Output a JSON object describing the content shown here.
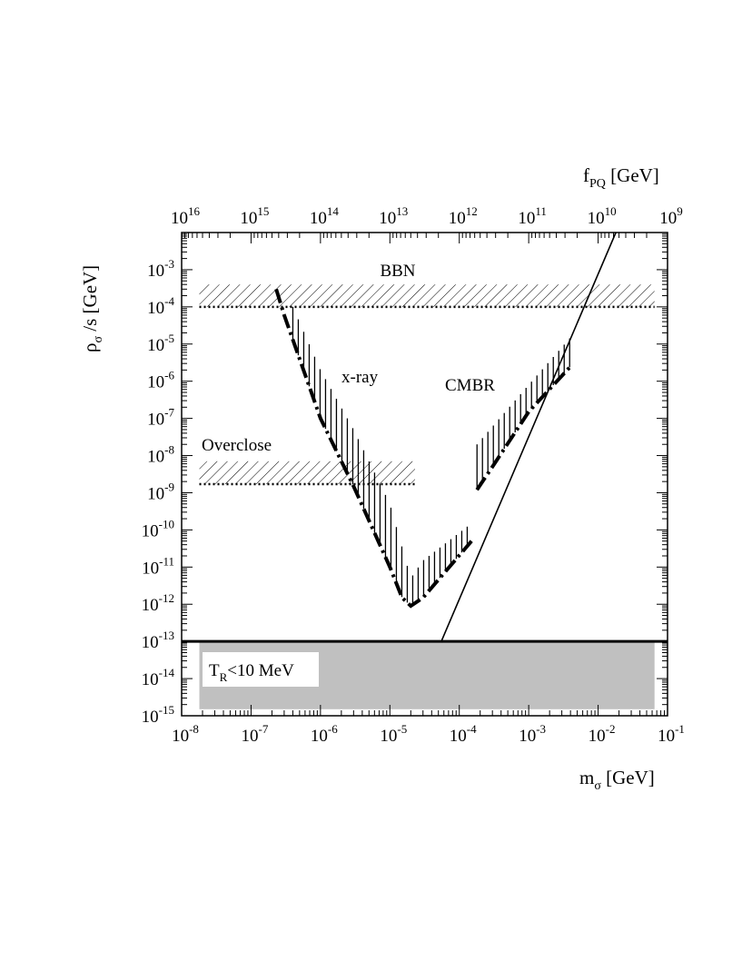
{
  "chart_data": {
    "type": "line",
    "xlabel": "mσ [GeV]",
    "xlabel_base": "m",
    "xlabel_sub": "σ",
    "xlabel_unit": "[GeV]",
    "ylabel": "ρσ /s [GeV]",
    "ylabel_base": "ρ",
    "ylabel_sub": "σ",
    "ylabel_unit": "/s [GeV]",
    "top_xlabel": "fPQ [GeV]",
    "top_xlabel_base": "f",
    "top_xlabel_sub": "PQ",
    "top_xlabel_unit": "[GeV]",
    "x_scale": "log",
    "y_scale": "log",
    "xlim": [
      1e-08,
      0.1
    ],
    "ylim": [
      1e-15,
      0.01
    ],
    "top_xlim": [
      1e+16,
      1000000000.0
    ],
    "x_ticks": [
      {
        "value": 1e-08,
        "base": "10",
        "exp": "-8"
      },
      {
        "value": 1e-07,
        "base": "10",
        "exp": "-7"
      },
      {
        "value": 1e-06,
        "base": "10",
        "exp": "-6"
      },
      {
        "value": 1e-05,
        "base": "10",
        "exp": "-5"
      },
      {
        "value": 0.0001,
        "base": "10",
        "exp": "-4"
      },
      {
        "value": 0.001,
        "base": "10",
        "exp": "-3"
      },
      {
        "value": 0.01,
        "base": "10",
        "exp": "-2"
      },
      {
        "value": 0.1,
        "base": "10",
        "exp": "-1"
      }
    ],
    "top_x_ticks": [
      {
        "value": 1e+16,
        "base": "10",
        "exp": "16"
      },
      {
        "value": 1000000000000000.0,
        "base": "10",
        "exp": "15"
      },
      {
        "value": 100000000000000.0,
        "base": "10",
        "exp": "14"
      },
      {
        "value": 10000000000000.0,
        "base": "10",
        "exp": "13"
      },
      {
        "value": 1000000000000.0,
        "base": "10",
        "exp": "12"
      },
      {
        "value": 100000000000.0,
        "base": "10",
        "exp": "11"
      },
      {
        "value": 10000000000.0,
        "base": "10",
        "exp": "10"
      },
      {
        "value": 1000000000.0,
        "base": "10",
        "exp": "9"
      }
    ],
    "y_ticks": [
      {
        "value": 0.001,
        "base": "10",
        "exp": "-3"
      },
      {
        "value": 0.0001,
        "base": "10",
        "exp": "-4"
      },
      {
        "value": 1e-05,
        "base": "10",
        "exp": "-5"
      },
      {
        "value": 1e-06,
        "base": "10",
        "exp": "-6"
      },
      {
        "value": 1e-07,
        "base": "10",
        "exp": "-7"
      },
      {
        "value": 1e-08,
        "base": "10",
        "exp": "-8"
      },
      {
        "value": 1e-09,
        "base": "10",
        "exp": "-9"
      },
      {
        "value": 1e-10,
        "base": "10",
        "exp": "-10"
      },
      {
        "value": 1e-11,
        "base": "10",
        "exp": "-11"
      },
      {
        "value": 1e-12,
        "base": "10",
        "exp": "-12"
      },
      {
        "value": 1e-13,
        "base": "10",
        "exp": "-13"
      },
      {
        "value": 1e-14,
        "base": "10",
        "exp": "-14"
      },
      {
        "value": 1e-15,
        "base": "10",
        "exp": "-15"
      }
    ],
    "regions": [
      {
        "label": "BBN",
        "kind": "hatched-band",
        "x_range": [
          1.8e-08,
          0.065
        ],
        "y_range": [
          0.0001,
          0.0004
        ],
        "boundary_y": 0.0001
      },
      {
        "label": "Overclose",
        "kind": "hatched-band",
        "x_range": [
          1.8e-08,
          2.3e-05
        ],
        "y_range": [
          1.7e-09,
          7e-09
        ],
        "boundary_y": 1.7e-09
      },
      {
        "label": "T_R<10 MeV",
        "label_base": "T",
        "label_sub": "R",
        "label_rest": "<10 MeV",
        "kind": "grey-box",
        "x_range": [
          1.8e-08,
          0.065
        ],
        "y_range": [
          1.5e-15,
          1e-13
        ],
        "boundary_y": 1e-13
      }
    ],
    "series": [
      {
        "name": "x-ray",
        "style": "dash-dot",
        "points": [
          [
            2.3e-07,
            0.0003
          ],
          [
            3e-07,
            6e-05
          ],
          [
            1e-06,
            1e-07
          ],
          [
            3e-06,
            1.5e-09
          ],
          [
            1e-05,
            1e-11
          ],
          [
            1.5e-05,
            1.5e-12
          ],
          [
            2e-05,
            9e-13
          ],
          [
            3e-05,
            1.5e-12
          ],
          [
            0.00015,
            5e-11
          ]
        ],
        "hatch": [
          [
            4e-07,
            0.0001
          ],
          [
            1e-06,
            2e-06
          ],
          [
            3e-06,
            5e-08
          ],
          [
            1e-05,
            5e-10
          ],
          [
            2e-05,
            5e-12
          ],
          [
            3e-05,
            1.5e-11
          ],
          [
            0.00015,
            1.5e-10
          ]
        ]
      },
      {
        "name": "CMBR",
        "style": "dash-dot",
        "points": [
          [
            0.00018,
            1.2e-09
          ],
          [
            0.0003,
            5e-09
          ],
          [
            0.001,
            1.5e-07
          ],
          [
            0.004,
            2.5e-06
          ]
        ],
        "hatch": [
          [
            0.00018,
            2e-08
          ],
          [
            0.001,
            8e-07
          ],
          [
            0.004,
            1.5e-05
          ]
        ]
      },
      {
        "name": "",
        "style": "solid",
        "points": [
          [
            5.5e-05,
            1e-13
          ],
          [
            0.018,
            0.01
          ]
        ]
      }
    ],
    "grid": false,
    "legend": "none"
  }
}
